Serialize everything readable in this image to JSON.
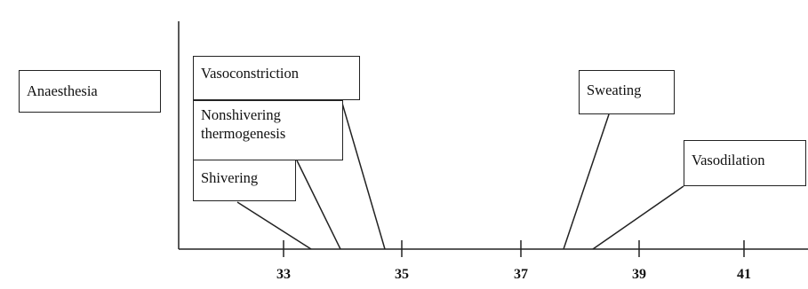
{
  "boxes": {
    "anaesthesia": "Anaesthesia",
    "vasoconstriction": "Vasoconstriction",
    "nonshivering_line1": "Nonshivering",
    "nonshivering_line2": "thermogenesis",
    "shivering": "Shivering",
    "sweating": "Sweating",
    "vasodilation": "Vasodilation"
  },
  "axis": {
    "tick_labels": [
      "33",
      "35",
      "37",
      "39",
      "41"
    ]
  },
  "colors": {
    "line": "#222222",
    "text": "#111111",
    "background": "#ffffff"
  }
}
